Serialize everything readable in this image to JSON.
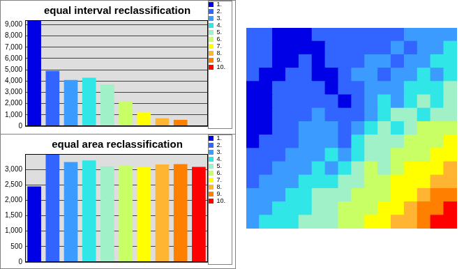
{
  "chart_data": [
    {
      "type": "bar",
      "title": "equal interval reclassification",
      "categories": [
        "1.",
        "2.",
        "3.",
        "4.",
        "5.",
        "6.",
        "7.",
        "8.",
        "9.",
        "10."
      ],
      "values": [
        9350,
        4900,
        4100,
        4300,
        3700,
        2200,
        1250,
        700,
        560,
        0
      ],
      "colors": [
        "#0000e6",
        "#3264ff",
        "#3c9bff",
        "#30e6e6",
        "#a0f0c8",
        "#c8ff64",
        "#ffff00",
        "#ffb432",
        "#ff8000",
        "#ff0000"
      ],
      "ylim": [
        0,
        9400
      ],
      "yticks": [
        0,
        {
          "value": 1000,
          "label": "1,000"
        },
        {
          "value": 2000,
          "label": "2,000"
        },
        {
          "value": 3000,
          "label": "3,000"
        },
        {
          "value": 4000,
          "label": "4,000"
        },
        {
          "value": 5000,
          "label": "5,000"
        },
        {
          "value": 6000,
          "label": "6,000"
        },
        {
          "value": 7000,
          "label": "7,000"
        },
        {
          "value": 8000,
          "label": "8,000"
        },
        {
          "value": 9000,
          "label": "9,000"
        }
      ],
      "grid": true,
      "legend": "right",
      "tick_labels": "y"
    },
    {
      "type": "bar",
      "title": "equal area reclassification",
      "categories": [
        "1.",
        "2.",
        "3.",
        "4.",
        "5.",
        "6.",
        "7.",
        "8.",
        "9.",
        "10."
      ],
      "values": [
        2450,
        3480,
        3240,
        3290,
        3100,
        3120,
        3080,
        3160,
        3170,
        3080
      ],
      "colors": [
        "#0000e6",
        "#3264ff",
        "#3c9bff",
        "#30e6e6",
        "#a0f0c8",
        "#c8ff64",
        "#ffff00",
        "#ffb432",
        "#ff8000",
        "#ff0000"
      ],
      "ylim": [
        0,
        3500
      ],
      "yticks": [
        0,
        500,
        {
          "value": 1000,
          "label": "1,000"
        },
        {
          "value": 1500,
          "label": "1,500"
        },
        {
          "value": 2000,
          "label": "2,000"
        },
        {
          "value": 2500,
          "label": "2,500"
        },
        {
          "value": 3000,
          "label": "3,000"
        }
      ],
      "grid": true,
      "legend": "right",
      "tick_labels": "y"
    },
    {
      "type": "heatmap",
      "colors": [
        "#0000e6",
        "#3264ff",
        "#3c9bff",
        "#30e6e6",
        "#a0f0c8",
        "#c8ff64",
        "#ffff00",
        "#ffb432",
        "#ff8000",
        "#ff0000"
      ],
      "cells": [
        [
          2,
          2,
          1,
          1,
          1,
          2,
          2,
          2,
          2,
          2,
          2,
          2,
          3,
          3,
          3,
          3
        ],
        [
          2,
          2,
          1,
          1,
          1,
          1,
          2,
          2,
          2,
          2,
          2,
          3,
          2,
          3,
          3,
          4
        ],
        [
          2,
          2,
          1,
          1,
          2,
          1,
          2,
          2,
          2,
          3,
          3,
          2,
          3,
          3,
          4,
          4
        ],
        [
          2,
          1,
          1,
          2,
          2,
          1,
          1,
          2,
          3,
          3,
          2,
          3,
          3,
          4,
          3,
          4
        ],
        [
          1,
          1,
          2,
          2,
          2,
          2,
          1,
          2,
          2,
          3,
          3,
          3,
          4,
          4,
          4,
          5
        ],
        [
          1,
          1,
          2,
          2,
          2,
          2,
          2,
          1,
          2,
          3,
          4,
          3,
          4,
          5,
          4,
          5
        ],
        [
          1,
          1,
          2,
          2,
          2,
          3,
          2,
          2,
          2,
          3,
          4,
          5,
          5,
          4,
          5,
          5
        ],
        [
          1,
          1,
          2,
          2,
          3,
          3,
          3,
          2,
          3,
          4,
          5,
          4,
          5,
          6,
          6,
          6
        ],
        [
          1,
          2,
          2,
          2,
          3,
          3,
          3,
          2,
          4,
          5,
          5,
          5,
          6,
          6,
          6,
          7
        ],
        [
          2,
          2,
          2,
          3,
          3,
          3,
          4,
          3,
          4,
          5,
          5,
          6,
          6,
          6,
          7,
          7
        ],
        [
          2,
          2,
          3,
          3,
          3,
          4,
          3,
          4,
          5,
          6,
          5,
          6,
          7,
          7,
          7,
          8
        ],
        [
          2,
          3,
          3,
          3,
          4,
          4,
          4,
          5,
          5,
          6,
          6,
          7,
          7,
          7,
          8,
          8
        ],
        [
          3,
          3,
          3,
          4,
          4,
          5,
          5,
          5,
          6,
          6,
          6,
          7,
          7,
          8,
          9,
          9
        ],
        [
          3,
          3,
          4,
          4,
          4,
          5,
          5,
          6,
          6,
          6,
          7,
          7,
          8,
          9,
          9,
          10
        ],
        [
          3,
          4,
          4,
          4,
          5,
          5,
          5,
          6,
          6,
          7,
          7,
          8,
          8,
          9,
          10,
          10
        ]
      ],
      "tick_labels": false
    }
  ]
}
